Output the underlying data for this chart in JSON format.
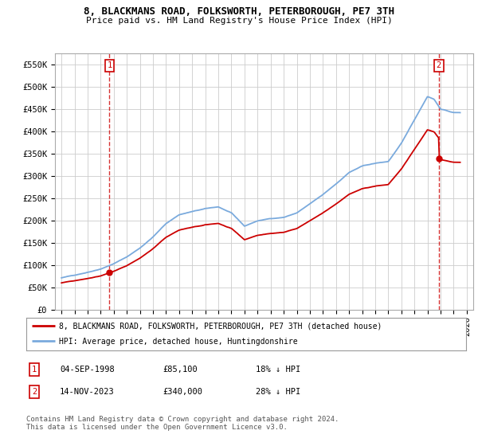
{
  "title_line1": "8, BLACKMANS ROAD, FOLKSWORTH, PETERBOROUGH, PE7 3TH",
  "title_line2": "Price paid vs. HM Land Registry's House Price Index (HPI)",
  "ylabel_ticks": [
    "£0",
    "£50K",
    "£100K",
    "£150K",
    "£200K",
    "£250K",
    "£300K",
    "£350K",
    "£400K",
    "£450K",
    "£500K",
    "£550K"
  ],
  "ytick_values": [
    0,
    50000,
    100000,
    150000,
    200000,
    250000,
    300000,
    350000,
    400000,
    450000,
    500000,
    550000
  ],
  "xlim": [
    1994.5,
    2026.5
  ],
  "ylim": [
    0,
    575000
  ],
  "hpi_color": "#7aaadd",
  "price_color": "#cc0000",
  "marker1_year": 1998.67,
  "marker1_value": 85100,
  "marker2_year": 2023.87,
  "marker2_value": 340000,
  "legend_line1": "8, BLACKMANS ROAD, FOLKSWORTH, PETERBOROUGH, PE7 3TH (detached house)",
  "legend_line2": "HPI: Average price, detached house, Huntingdonshire",
  "annotation1_date": "04-SEP-1998",
  "annotation1_price": "£85,100",
  "annotation1_hpi": "18% ↓ HPI",
  "annotation2_date": "14-NOV-2023",
  "annotation2_price": "£340,000",
  "annotation2_hpi": "28% ↓ HPI",
  "footer": "Contains HM Land Registry data © Crown copyright and database right 2024.\nThis data is licensed under the Open Government Licence v3.0.",
  "background_color": "#ffffff",
  "grid_color": "#cccccc",
  "hpi_knots_x": [
    1995,
    1996,
    1997,
    1998,
    1999,
    2000,
    2001,
    2002,
    2003,
    2004,
    2005,
    2006,
    2007,
    2008,
    2009,
    2010,
    2011,
    2012,
    2013,
    2014,
    2015,
    2016,
    2017,
    2018,
    2019,
    2020,
    2021,
    2022,
    2023.0,
    2023.5,
    2024.0,
    2025.0
  ],
  "hpi_knots_y": [
    72000,
    78000,
    85000,
    93000,
    105000,
    120000,
    140000,
    165000,
    195000,
    215000,
    222000,
    228000,
    232000,
    218000,
    188000,
    200000,
    205000,
    208000,
    218000,
    238000,
    258000,
    282000,
    308000,
    322000,
    328000,
    332000,
    372000,
    425000,
    478000,
    472000,
    450000,
    442000
  ]
}
